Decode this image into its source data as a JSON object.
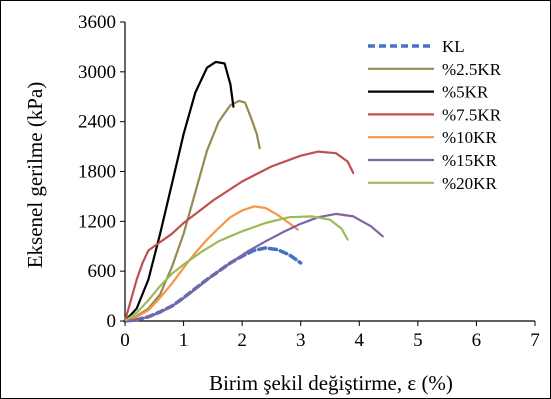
{
  "chart_data": {
    "type": "line",
    "title": "",
    "xlabel": "Birim şekil değiştirme, ε (%)",
    "ylabel": "Eksenel gerilme (kPa)",
    "xlim": [
      0,
      7
    ],
    "ylim": [
      0,
      3600
    ],
    "x_ticks": [
      "0",
      "1",
      "2",
      "3",
      "4",
      "5",
      "6",
      "7"
    ],
    "y_ticks": [
      "0",
      "600",
      "1200",
      "1800",
      "2400",
      "3000",
      "3600"
    ],
    "grid": false,
    "legend_position": "top-right",
    "series": [
      {
        "name": "KL",
        "color": "#4472C4",
        "dashed": true,
        "x": [
          0,
          0.2,
          0.4,
          0.6,
          0.8,
          1.0,
          1.2,
          1.4,
          1.6,
          1.8,
          2.0,
          2.2,
          2.4,
          2.6,
          2.8,
          3.0
        ],
        "y": [
          0,
          15,
          50,
          110,
          180,
          280,
          390,
          500,
          600,
          700,
          780,
          850,
          880,
          860,
          800,
          700
        ]
      },
      {
        "name": "%2.5KR",
        "color": "#948A54",
        "dashed": false,
        "x": [
          0,
          0.2,
          0.4,
          0.6,
          0.8,
          1.0,
          1.2,
          1.4,
          1.6,
          1.8,
          1.95,
          2.05,
          2.15,
          2.25,
          2.3
        ],
        "y": [
          0,
          60,
          150,
          320,
          650,
          1050,
          1550,
          2050,
          2400,
          2600,
          2650,
          2630,
          2450,
          2250,
          2080
        ]
      },
      {
        "name": "%5KR",
        "color": "#000000",
        "dashed": false,
        "x": [
          0,
          0.2,
          0.4,
          0.6,
          0.8,
          1.0,
          1.2,
          1.4,
          1.55,
          1.7,
          1.8,
          1.85
        ],
        "y": [
          0,
          150,
          500,
          1050,
          1650,
          2250,
          2750,
          3050,
          3120,
          3100,
          2850,
          2580
        ]
      },
      {
        "name": "%7.5KR",
        "color": "#C0504D",
        "dashed": false,
        "x": [
          0,
          0.1,
          0.2,
          0.3,
          0.4,
          0.6,
          0.8,
          1.0,
          1.5,
          2.0,
          2.5,
          3.0,
          3.3,
          3.6,
          3.8,
          3.9
        ],
        "y": [
          0,
          250,
          500,
          700,
          850,
          950,
          1050,
          1180,
          1450,
          1680,
          1860,
          1990,
          2040,
          2020,
          1920,
          1780
        ]
      },
      {
        "name": "%10KR",
        "color": "#F79646",
        "dashed": false,
        "x": [
          0,
          0.2,
          0.4,
          0.6,
          0.8,
          1.0,
          1.2,
          1.4,
          1.6,
          1.8,
          2.0,
          2.2,
          2.4,
          2.6,
          2.8,
          2.95
        ],
        "y": [
          0,
          50,
          130,
          280,
          450,
          640,
          820,
          980,
          1120,
          1250,
          1330,
          1380,
          1360,
          1280,
          1180,
          1100
        ]
      },
      {
        "name": "%15KR",
        "color": "#8064A2",
        "dashed": false,
        "x": [
          0,
          0.3,
          0.6,
          0.9,
          1.2,
          1.5,
          1.8,
          2.1,
          2.4,
          2.7,
          3.0,
          3.3,
          3.6,
          3.9,
          4.2,
          4.4
        ],
        "y": [
          0,
          30,
          100,
          220,
          380,
          550,
          700,
          840,
          960,
          1070,
          1170,
          1250,
          1290,
          1260,
          1140,
          1020
        ]
      },
      {
        "name": "%20KR",
        "color": "#9BBB59",
        "dashed": false,
        "x": [
          0,
          0.2,
          0.4,
          0.6,
          0.8,
          1.0,
          1.3,
          1.6,
          2.0,
          2.4,
          2.8,
          3.2,
          3.5,
          3.7,
          3.8
        ],
        "y": [
          0,
          100,
          250,
          420,
          570,
          680,
          830,
          960,
          1080,
          1180,
          1250,
          1260,
          1220,
          1110,
          980
        ]
      }
    ]
  }
}
